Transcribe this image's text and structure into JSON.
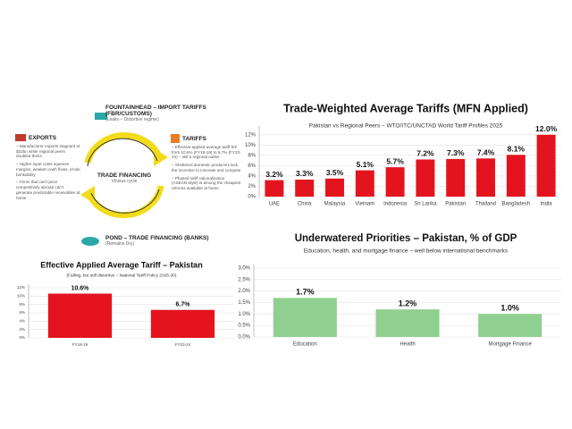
{
  "diagram": {
    "top": {
      "title": "FOUNTAINHEAD – IMPORT TARIFFS (FBR/CUSTOMS)",
      "subtitle": "(Leaks – Distortive regime)"
    },
    "left": {
      "title": "EXPORTS",
      "bullets": [
        "Manufacturer exports stagnant at $32bn while regional peers doubled theirs",
        "Higher input costs squeeze margins, weaken cash flows, erode bankability",
        "Firms that can't price competitively abroad can't generate predictable receivables at home"
      ]
    },
    "right": {
      "title": "TARIFFS",
      "bullets": [
        "Effective applied average tariff fell from 10.6% (FY18-19) to 6.7% (FY23-24) – still a regional outlier",
        "Sheltered domestic producers lack the incentive to innovate and compete",
        "Phased tariff rationalization (ASEAN-style) is among the cheapest reforms available at home"
      ]
    },
    "center": {
      "title": "TRADE FINANCING",
      "subtitle": "Vicious cycle"
    },
    "bottom": {
      "title": "POND – TRADE FINANCING (BANKS)",
      "subtitle": "(Remains Dry)"
    }
  },
  "chart_data": [
    {
      "type": "bar",
      "title": "Effective Applied Average Tariff – Pakistan",
      "subtitle": "(Falling, but still distortive – National Tariff Policy 2025-30)",
      "categories": [
        "FY18-19",
        "FY23-24"
      ],
      "values": [
        10.6,
        6.7
      ],
      "value_labels": [
        "10.6%",
        "6.7%"
      ],
      "color": "#e3141e",
      "ylim": [
        0,
        12
      ],
      "yticks": [
        {
          "value": 0,
          "label": "0%"
        },
        {
          "value": 2,
          "label": "2%"
        },
        {
          "value": 4,
          "label": "4%"
        },
        {
          "value": 6,
          "label": "6%"
        },
        {
          "value": 8,
          "label": "8%"
        },
        {
          "value": 10,
          "label": "10%"
        },
        {
          "value": 12,
          "label": "12%"
        }
      ],
      "grid": true
    },
    {
      "type": "bar",
      "title": "Trade-Weighted Average Tariffs (MFN Applied)",
      "subtitle": "Pakistan vs Regional Peers – WTO/ITC/UNCTAD World Tariff Profiles 2025",
      "categories": [
        "UAE",
        "China",
        "Malaysia",
        "Vietnam",
        "Indonesia",
        "Sri Lanka",
        "Pakistan",
        "Thailand",
        "Bangladesh",
        "India"
      ],
      "values": [
        3.2,
        3.3,
        3.5,
        5.1,
        5.7,
        7.2,
        7.3,
        7.4,
        8.1,
        12.0
      ],
      "value_labels": [
        "3.2%",
        "3.3%",
        "3.5%",
        "5.1%",
        "5.7%",
        "7.2%",
        "7.3%",
        "7.4%",
        "8.1%",
        "12.0%"
      ],
      "color": "#e3141e",
      "ylim": [
        0,
        13
      ],
      "yticks": [
        {
          "value": 0,
          "label": "0%"
        },
        {
          "value": 2,
          "label": "2%"
        },
        {
          "value": 4,
          "label": "4%"
        },
        {
          "value": 6,
          "label": "6%"
        },
        {
          "value": 8,
          "label": "8%"
        },
        {
          "value": 10,
          "label": "10%"
        },
        {
          "value": 12,
          "label": "12%"
        }
      ],
      "grid": true
    },
    {
      "type": "bar",
      "title": "Underwatered Priorities – Pakistan, % of GDP",
      "subtitle": "Education, health, and mortgage finance – well below international benchmarks",
      "categories": [
        "Education",
        "Health",
        "Mortgage Finance"
      ],
      "values": [
        1.7,
        1.2,
        1.0
      ],
      "value_labels": [
        "1.7%",
        "1.2%",
        "1.0%"
      ],
      "color": "#8fcf8f",
      "ylim": [
        0,
        3
      ],
      "yticks": [
        {
          "value": 0,
          "label": "0.0%"
        },
        {
          "value": 0.5,
          "label": "0.5%"
        },
        {
          "value": 1,
          "label": "1.0%"
        },
        {
          "value": 1.5,
          "label": "1.5%"
        },
        {
          "value": 2,
          "label": "2.0%"
        },
        {
          "value": 2.5,
          "label": "2.5%"
        },
        {
          "value": 3,
          "label": "3.0%"
        }
      ],
      "grid": true
    }
  ]
}
